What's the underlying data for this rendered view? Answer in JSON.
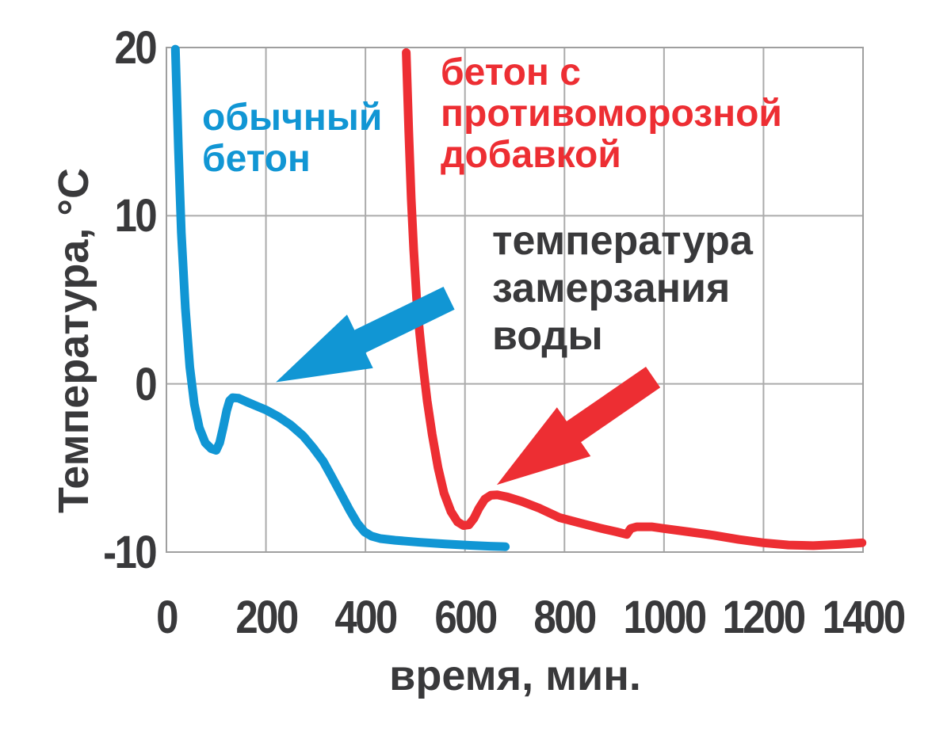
{
  "chart_data": {
    "type": "line",
    "title": "",
    "xlabel": "время, мин.",
    "ylabel": "Температура, °C",
    "xlim": [
      0,
      1400
    ],
    "ylim": [
      -10,
      20
    ],
    "x_ticks": [
      0,
      200,
      400,
      600,
      800,
      1000,
      1200,
      1400
    ],
    "y_ticks": [
      20,
      10,
      0,
      -10
    ],
    "grid": true,
    "legend_position": "none",
    "style": {
      "background": "#FFFFFF",
      "grid_color": "#ABABAB",
      "border_color": "#9F9F9F",
      "text_color": "#39393B",
      "blue": "#1196D4",
      "red": "#ED2E33"
    },
    "series": [
      {
        "name": "обычный бетон",
        "color": "#1196D4",
        "points": [
          [
            18,
            19.9
          ],
          [
            24,
            14
          ],
          [
            30,
            9
          ],
          [
            38,
            4.5
          ],
          [
            47,
            1
          ],
          [
            56,
            -1.2
          ],
          [
            66,
            -2.6
          ],
          [
            78,
            -3.5
          ],
          [
            90,
            -3.85
          ],
          [
            100,
            -3.95
          ],
          [
            107,
            -3.5
          ],
          [
            114,
            -2.6
          ],
          [
            121,
            -1.6
          ],
          [
            127,
            -1.0
          ],
          [
            133,
            -0.82
          ],
          [
            145,
            -0.85
          ],
          [
            160,
            -1.05
          ],
          [
            180,
            -1.3
          ],
          [
            200,
            -1.55
          ],
          [
            225,
            -1.95
          ],
          [
            250,
            -2.45
          ],
          [
            275,
            -3.1
          ],
          [
            295,
            -3.8
          ],
          [
            315,
            -4.6
          ],
          [
            332,
            -5.5
          ],
          [
            350,
            -6.5
          ],
          [
            368,
            -7.5
          ],
          [
            384,
            -8.3
          ],
          [
            398,
            -8.8
          ],
          [
            412,
            -9.05
          ],
          [
            430,
            -9.2
          ],
          [
            460,
            -9.3
          ],
          [
            510,
            -9.42
          ],
          [
            560,
            -9.52
          ],
          [
            610,
            -9.6
          ],
          [
            650,
            -9.65
          ],
          [
            681,
            -9.68
          ]
        ]
      },
      {
        "name": "бетон с противоморозной добавкой",
        "color": "#ED2E33",
        "points": [
          [
            482,
            19.7
          ],
          [
            487,
            15
          ],
          [
            492,
            11
          ],
          [
            497,
            8
          ],
          [
            503,
            5
          ],
          [
            509,
            3
          ],
          [
            516,
            1
          ],
          [
            524,
            -1
          ],
          [
            534,
            -3
          ],
          [
            546,
            -5
          ],
          [
            558,
            -6.5
          ],
          [
            572,
            -7.6
          ],
          [
            585,
            -8.2
          ],
          [
            597,
            -8.42
          ],
          [
            608,
            -8.38
          ],
          [
            618,
            -8.0
          ],
          [
            628,
            -7.4
          ],
          [
            640,
            -6.85
          ],
          [
            652,
            -6.62
          ],
          [
            665,
            -6.6
          ],
          [
            685,
            -6.72
          ],
          [
            715,
            -7.0
          ],
          [
            750,
            -7.4
          ],
          [
            790,
            -7.95
          ],
          [
            835,
            -8.3
          ],
          [
            875,
            -8.6
          ],
          [
            905,
            -8.8
          ],
          [
            925,
            -8.95
          ],
          [
            933,
            -8.6
          ],
          [
            945,
            -8.5
          ],
          [
            975,
            -8.5
          ],
          [
            1000,
            -8.6
          ],
          [
            1050,
            -8.8
          ],
          [
            1100,
            -9.0
          ],
          [
            1150,
            -9.25
          ],
          [
            1200,
            -9.45
          ],
          [
            1250,
            -9.58
          ],
          [
            1300,
            -9.62
          ],
          [
            1350,
            -9.55
          ],
          [
            1398,
            -9.45
          ]
        ]
      }
    ],
    "annotations": {
      "labels": [
        {
          "id": "ordinary-concrete",
          "text": "обычный\nбетон",
          "color": "#1196D4"
        },
        {
          "id": "antifreeze-concrete",
          "text": "бетон с\nпротивоморозной\nдобавкой",
          "color": "#ED2E33"
        },
        {
          "id": "freezing-temperature",
          "text": "температура\nзамерзания\nводы",
          "color": "#39393B"
        }
      ],
      "arrows": [
        {
          "id": "blue-arrow",
          "color": "#1196D4",
          "tip": [
            220,
            0.1
          ],
          "tail": [
            568,
            5.1
          ]
        },
        {
          "id": "red-arrow",
          "color": "#ED2E33",
          "tip": [
            664,
            -6.0
          ],
          "tail": [
            978,
            0.4
          ]
        }
      ]
    }
  }
}
